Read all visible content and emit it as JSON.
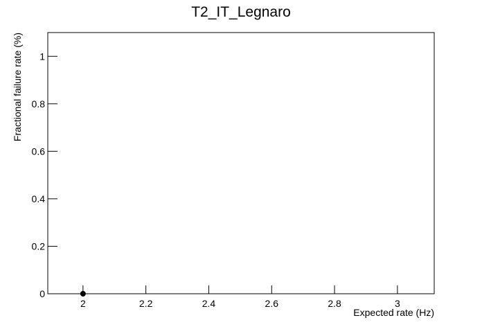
{
  "chart_data": {
    "type": "scatter",
    "title": "T2_IT_Legnaro",
    "x_label": "Expected rate (Hz)",
    "y_label": "Fractional failure rate (%)",
    "x": [
      2
    ],
    "values": [
      0
    ],
    "color": "#000000",
    "xlim": [
      1.888,
      3.117
    ],
    "ylim": [
      0,
      1.1
    ],
    "xticks": [
      2,
      2.2,
      2.4,
      2.6,
      2.8,
      3
    ],
    "yticks": [
      0,
      0.2,
      0.4,
      0.6,
      0.8,
      1
    ],
    "grid": false
  }
}
